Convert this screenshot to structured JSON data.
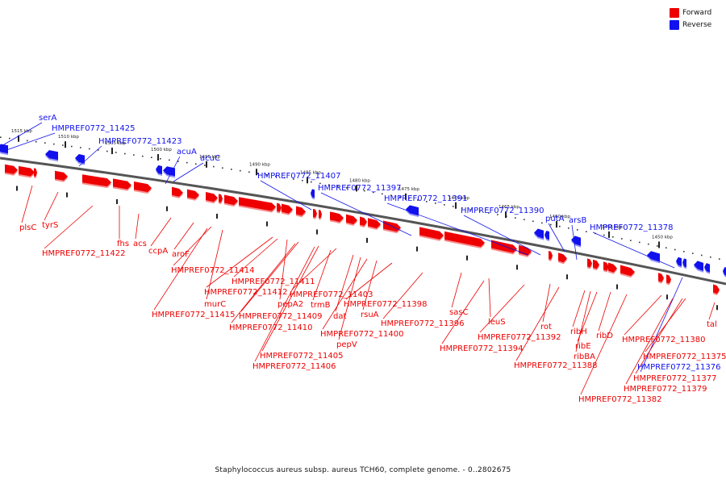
{
  "legend": {
    "forward_label": "Forward",
    "reverse_label": "Reverse"
  },
  "colors": {
    "forward": "#ee0000",
    "reverse": "#1111ee",
    "backbone": "#555555"
  },
  "caption": "Staphylococcus aureus subsp. aureus TCH60, complete genome. - 0..2802675",
  "scale_ticks": [
    "1515 kbp",
    "1510 kbp",
    "1505 kbp",
    "1500 kbp",
    "1495 kbp",
    "1490 kbp",
    "1485 kbp",
    "1480 kbp",
    "1475 kbp",
    "1470 kbp",
    "1465 kbp",
    "1460 kbp",
    "1455 kbp",
    "1450 kbp"
  ],
  "reverse_genes": [
    "serA",
    "HMPREF0772_11425",
    "HMPREF0772_11423",
    "acuA",
    "acuC",
    "HMPREF0772_11407",
    "HMPREF0772_11397",
    "HMPREF0772_11391",
    "HMPREF0772_11390",
    "putA",
    "arsB",
    "HMPREF0772_11378",
    "HMPREF0772_11376"
  ],
  "forward_genes": [
    "plsC",
    "tyrS",
    "HMPREF0772_11422",
    "fhs",
    "acs",
    "ccpA",
    "aroF",
    "HMPREF0772_11414",
    "murC",
    "HMPREF0772_11415",
    "HMPREF0772_11411",
    "HMPREF0772_11412",
    "pepA2",
    "HMPREF0772_11409",
    "HMPREF0772_11410",
    "HMPREF0772_11405",
    "HMPREF0772_11406",
    "HMPREF0772_11403",
    "trmB",
    "dat",
    "HMPREF0772_11400",
    "pepV",
    "rsuA",
    "HMPREF0772_11398",
    "HMPREF0772_11396",
    "sasC",
    "leuS",
    "HMPREF0772_11394",
    "HMPREF0772_11392",
    "rot",
    "HMPREF0772_11388",
    "ribH",
    "ribE",
    "ribBA",
    "ribD",
    "HMPREF0772_11382",
    "HMPREF0772_11380",
    "HMPREF0772_11375",
    "HMPREF0772_11377",
    "HMPREF0772_11379",
    "tal"
  ]
}
